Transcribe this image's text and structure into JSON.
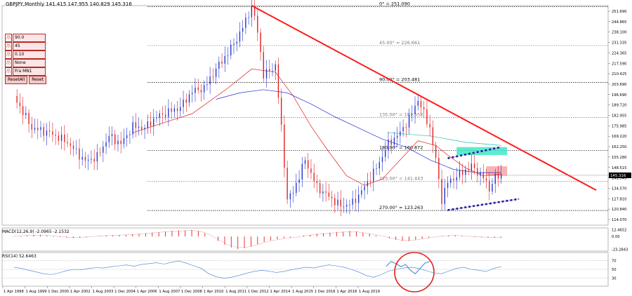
{
  "chart_data": {
    "type": "line",
    "symbol_header": "GBPJPY,Monthly  141.415 147.955 140.829 145.316",
    "y_ticks": [
      "251.690",
      "244.865",
      "238.100",
      "231.335",
      "224.365",
      "217.590",
      "210.425",
      "203.690",
      "196.690",
      "189.720",
      "182.955",
      "175.985",
      "169.220",
      "162.250",
      "155.280",
      "148.515",
      "141.545",
      "134.570",
      "127.810",
      "120.840",
      "114.070"
    ],
    "x_ticks": [
      "1 Apr 1998",
      "1 Aug 1999",
      "1 Dec 2000",
      "1 Apr 2002",
      "1 Aug 2003",
      "1 Dec 2004",
      "1 Apr 2006",
      "1 Aug 2007",
      "1 Dec 2008",
      "1 Apr 2010",
      "1 Aug 2011",
      "1 Dec 2012",
      "1 Apr 2014",
      "1 Aug 2015",
      "1 Dec 2016",
      "1 Apr 2018",
      "1 Aug 2019"
    ],
    "ylim": [
      114.07,
      251.69
    ],
    "current_price": "145.316",
    "price_series": [
      {
        "t": 0,
        "v": 195
      },
      {
        "t": 3,
        "v": 175
      },
      {
        "t": 6,
        "v": 172
      },
      {
        "t": 9,
        "v": 166
      },
      {
        "t": 12,
        "v": 154
      },
      {
        "t": 14,
        "v": 157
      },
      {
        "t": 16,
        "v": 170
      },
      {
        "t": 18,
        "v": 165
      },
      {
        "t": 20,
        "v": 176
      },
      {
        "t": 22,
        "v": 175
      },
      {
        "t": 24,
        "v": 182
      },
      {
        "t": 26,
        "v": 185
      },
      {
        "t": 28,
        "v": 188
      },
      {
        "t": 30,
        "v": 198
      },
      {
        "t": 32,
        "v": 200
      },
      {
        "t": 34,
        "v": 212
      },
      {
        "t": 36,
        "v": 222
      },
      {
        "t": 38,
        "v": 234
      },
      {
        "t": 40,
        "v": 251
      },
      {
        "t": 41,
        "v": 236
      },
      {
        "t": 42,
        "v": 208
      },
      {
        "t": 44,
        "v": 214
      },
      {
        "t": 45,
        "v": 175
      },
      {
        "t": 46,
        "v": 130
      },
      {
        "t": 47,
        "v": 135
      },
      {
        "t": 49,
        "v": 155
      },
      {
        "t": 51,
        "v": 138
      },
      {
        "t": 53,
        "v": 132
      },
      {
        "t": 55,
        "v": 126
      },
      {
        "t": 57,
        "v": 128
      },
      {
        "t": 59,
        "v": 138
      },
      {
        "t": 61,
        "v": 150
      },
      {
        "t": 63,
        "v": 165
      },
      {
        "t": 65,
        "v": 172
      },
      {
        "t": 67,
        "v": 184
      },
      {
        "t": 68,
        "v": 193
      },
      {
        "t": 69,
        "v": 184
      },
      {
        "t": 70,
        "v": 175
      },
      {
        "t": 71,
        "v": 155
      },
      {
        "t": 72,
        "v": 130
      },
      {
        "t": 73,
        "v": 141
      },
      {
        "t": 75,
        "v": 146
      },
      {
        "t": 77,
        "v": 151
      },
      {
        "t": 79,
        "v": 144
      },
      {
        "t": 80,
        "v": 137
      },
      {
        "t": 81,
        "v": 144
      },
      {
        "t": 82,
        "v": 145.3
      }
    ],
    "sma_red": [
      {
        "t": 20,
        "v": 172
      },
      {
        "t": 30,
        "v": 184
      },
      {
        "t": 36,
        "v": 200
      },
      {
        "t": 40,
        "v": 212
      },
      {
        "t": 44,
        "v": 210
      },
      {
        "t": 47,
        "v": 195
      },
      {
        "t": 50,
        "v": 176
      },
      {
        "t": 53,
        "v": 160
      },
      {
        "t": 56,
        "v": 145
      },
      {
        "t": 59,
        "v": 139
      },
      {
        "t": 62,
        "v": 143
      },
      {
        "t": 65,
        "v": 155
      },
      {
        "t": 68,
        "v": 167
      },
      {
        "t": 71,
        "v": 164
      },
      {
        "t": 73,
        "v": 158
      },
      {
        "t": 76,
        "v": 150
      },
      {
        "t": 79,
        "v": 145
      },
      {
        "t": 82,
        "v": 146
      }
    ],
    "sma_blue": [
      {
        "t": 34,
        "v": 193
      },
      {
        "t": 38,
        "v": 197
      },
      {
        "t": 42,
        "v": 199
      },
      {
        "t": 46,
        "v": 197
      },
      {
        "t": 50,
        "v": 190
      },
      {
        "t": 54,
        "v": 182
      },
      {
        "t": 58,
        "v": 175
      },
      {
        "t": 62,
        "v": 168
      },
      {
        "t": 66,
        "v": 163
      },
      {
        "t": 70,
        "v": 155
      },
      {
        "t": 74,
        "v": 149
      },
      {
        "t": 78,
        "v": 147
      },
      {
        "t": 82,
        "v": 147
      }
    ],
    "sma_teal": [
      {
        "t": 63,
        "v": 172
      },
      {
        "t": 70,
        "v": 170
      },
      {
        "t": 76,
        "v": 166
      },
      {
        "t": 82,
        "v": 164
      }
    ],
    "trendlines": [
      {
        "name": "resistance",
        "color": "#ff1a1a",
        "points": [
          {
            "t": 40,
            "v": 251.7
          },
          {
            "t": 98,
            "v": 136
          }
        ]
      },
      {
        "name": "channel-upper",
        "color": "#1a1a99",
        "points": [
          {
            "t": 73,
            "v": 156
          },
          {
            "t": 82,
            "v": 163
          }
        ]
      },
      {
        "name": "channel-lower",
        "color": "#1a1a99",
        "points": [
          {
            "t": 73,
            "v": 123.5
          },
          {
            "t": 85,
            "v": 130.5
          }
        ]
      }
    ],
    "zones": [
      {
        "name": "cyan-zone",
        "color": "#33e6c0",
        "t0": 74.5,
        "t1": 83,
        "v0": 158,
        "v1": 163
      },
      {
        "name": "red-zone",
        "color": "#f6a0a0",
        "t0": 79.5,
        "t1": 83,
        "v0": 145,
        "v1": 151
      }
    ],
    "gann_levels": [
      {
        "label": "0° = 251.090",
        "value": 251.09,
        "color": "#000000"
      },
      {
        "label": "45.00° = 226.661",
        "value": 226.661,
        "color": "#777777"
      },
      {
        "label": "90.00° = 203.481",
        "value": 203.481,
        "color": "#000000"
      },
      {
        "label": "135.00° = 181.552",
        "value": 181.552,
        "color": "#777777"
      },
      {
        "label": "180.00° = 160.872",
        "value": 160.872,
        "color": "#000000"
      },
      {
        "label": "225.00° = 141.443",
        "value": 141.443,
        "color": "#777777"
      },
      {
        "label": "270.00° = 123.263",
        "value": 123.263,
        "color": "#000000"
      }
    ],
    "macd": {
      "label": "MACD(12,26,9) -2.0965 -2.1532",
      "y_ticks": [
        "12.4652",
        "0.00",
        "-23.2843"
      ],
      "histogram": [
        0.5,
        1,
        2,
        3,
        3,
        2,
        1,
        -1,
        -2,
        -3,
        -2,
        -1,
        0,
        1,
        2,
        2,
        3,
        3,
        4,
        5,
        6,
        7,
        8,
        9,
        10,
        11,
        11,
        12,
        10,
        6,
        0,
        -8,
        -15,
        -20,
        -23,
        -21,
        -18,
        -14,
        -10,
        -7,
        -5,
        -3,
        -2,
        0,
        2,
        3,
        5,
        6,
        7,
        8,
        9,
        10,
        9,
        7,
        5,
        2,
        0,
        -3,
        -6,
        -8,
        -8,
        -6,
        -4,
        -2,
        0,
        1,
        2,
        2,
        1,
        0,
        -1,
        -1,
        -2,
        -2,
        -2
      ],
      "signal": [
        0.5,
        1,
        2,
        2.5,
        2.5,
        2,
        1,
        0,
        -1,
        -2,
        -2,
        -1,
        0,
        1,
        1.5,
        2,
        2.5,
        3,
        3.5,
        4.5,
        5.5,
        6.5,
        7.5,
        8.5,
        9.5,
        10,
        10.5,
        11,
        10,
        7,
        2,
        -5,
        -12,
        -17,
        -20,
        -20,
        -18,
        -15,
        -11,
        -8,
        -6,
        -4,
        -2.5,
        -1,
        1,
        2.5,
        4,
        5,
        6,
        7,
        8,
        8.5,
        8.5,
        7,
        5,
        3,
        1,
        -2,
        -5,
        -7,
        -7.5,
        -6.5,
        -4.5,
        -2.5,
        -0.5,
        0.5,
        1.5,
        2,
        1.5,
        0.5,
        -0.5,
        -1,
        -1.5,
        -2,
        -2.1
      ]
    },
    "rsi": {
      "label": "RSI(14) 52.6463",
      "y_ticks": [
        "70",
        "50",
        "30"
      ],
      "ylim": [
        15,
        85
      ],
      "values": [
        55,
        52,
        48,
        44,
        40,
        38,
        42,
        47,
        50,
        49,
        52,
        54,
        53,
        56,
        58,
        60,
        57,
        61,
        63,
        65,
        62,
        66,
        69,
        64,
        58,
        52,
        40,
        33,
        30,
        32,
        36,
        41,
        45,
        48,
        46,
        43,
        45,
        49,
        52,
        55,
        53,
        57,
        60,
        58,
        55,
        50,
        44,
        36,
        32,
        38,
        46,
        50,
        53,
        55,
        52,
        47,
        42,
        40,
        46,
        52,
        55,
        50,
        48,
        45,
        52,
        56
      ],
      "inset_values": [
        57,
        68,
        63,
        56,
        61,
        48,
        40,
        52,
        64,
        68
      ]
    }
  },
  "controls": {
    "rows": [
      {
        "sq": "/|\\",
        "field": "90.0"
      },
      {
        "sq": "/|\\",
        "field": "45"
      },
      {
        "sq": "/|\\",
        "field": "0.10"
      },
      {
        "sq": "/|\\",
        "field": "None"
      },
      {
        "sq": "/|\\",
        "field": "Fra MN1"
      }
    ],
    "reset_all": "ResetAll",
    "reset": "Reset"
  }
}
